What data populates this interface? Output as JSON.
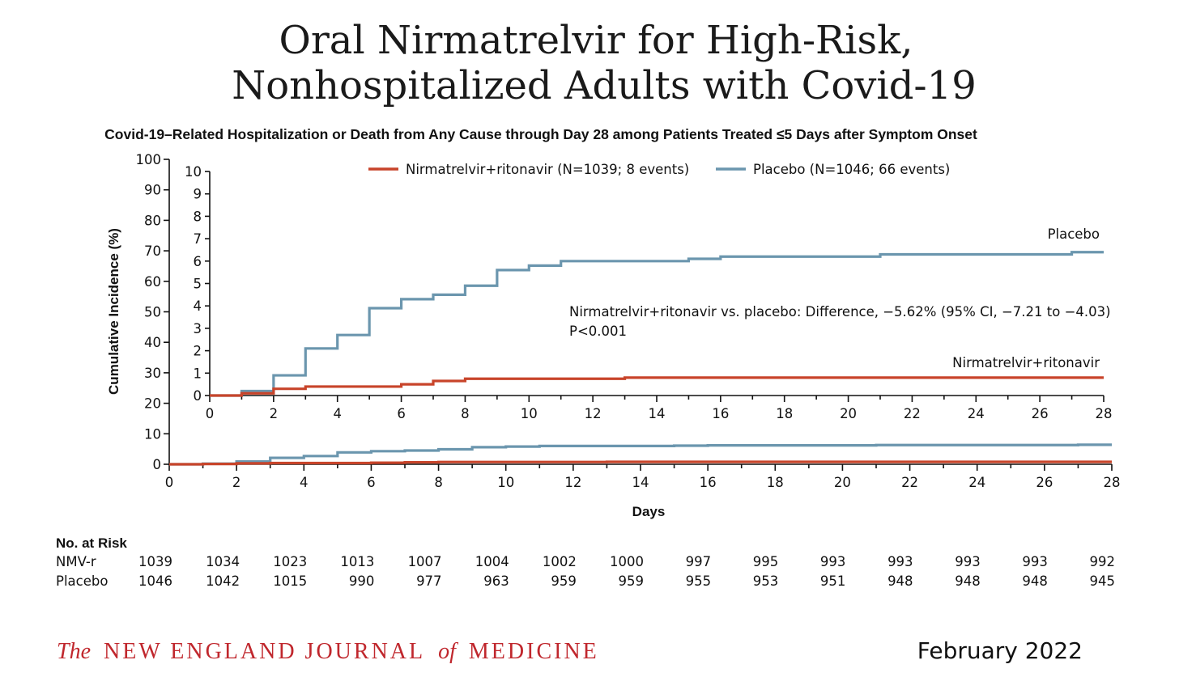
{
  "title_line1": "Oral Nirmatrelvir for High-Risk,",
  "title_line2": "Nonhospitalized Adults with Covid-19",
  "subtitle": "Covid-19–Related Hospitalization or Death from Any Cause through Day 28 among Patients Treated ≤5 Days after Symptom Onset",
  "colors": {
    "nirmatrelvir": "#c8442a",
    "placebo": "#6b96ae"
  },
  "chart_data": {
    "type": "line",
    "title": "Covid-19–Related Hospitalization or Death from Any Cause through Day 28 among Patients Treated ≤5 Days after Symptom Onset",
    "xlabel": "Days",
    "ylabel": "Cumulative Incidence (%)",
    "xlim": [
      0,
      28
    ],
    "ylim": [
      0,
      100
    ],
    "inset_ylim": [
      0,
      10
    ],
    "x_ticks": [
      0,
      2,
      4,
      6,
      8,
      10,
      12,
      14,
      16,
      18,
      20,
      22,
      24,
      26,
      28
    ],
    "y_ticks": [
      0,
      10,
      20,
      30,
      40,
      50,
      60,
      70,
      80,
      90,
      100
    ],
    "inset_y_ticks": [
      0,
      1,
      2,
      3,
      4,
      5,
      6,
      7,
      8,
      9,
      10
    ],
    "legend_position": "top",
    "series": [
      {
        "name": "Nirmatrelvir+ritonavir (N=1039; 8 events)",
        "end_label": "Nirmatrelvir+ritonavir",
        "steps": [
          [
            0,
            0
          ],
          [
            1,
            0.1
          ],
          [
            2,
            0.3
          ],
          [
            3,
            0.4
          ],
          [
            5,
            0.4
          ],
          [
            6,
            0.5
          ],
          [
            7,
            0.65
          ],
          [
            8,
            0.75
          ],
          [
            13,
            0.8
          ],
          [
            28,
            0.8
          ]
        ]
      },
      {
        "name": "Placebo (N=1046; 66 events)",
        "end_label": "Placebo",
        "steps": [
          [
            0,
            0
          ],
          [
            1,
            0.2
          ],
          [
            2,
            0.9
          ],
          [
            3,
            2.1
          ],
          [
            4,
            2.7
          ],
          [
            5,
            3.9
          ],
          [
            6,
            4.3
          ],
          [
            7,
            4.5
          ],
          [
            8,
            4.9
          ],
          [
            9,
            5.6
          ],
          [
            10,
            5.8
          ],
          [
            11,
            6.0
          ],
          [
            15,
            6.1
          ],
          [
            16,
            6.2
          ],
          [
            21,
            6.3
          ],
          [
            27,
            6.4
          ],
          [
            28,
            6.4
          ]
        ]
      }
    ],
    "annotation_line1": "Nirmatrelvir+ritonavir vs. placebo: Difference, −5.62% (95% CI, −7.21 to −4.03)",
    "annotation_line2": "P<0.001"
  },
  "risk_table": {
    "heading": "No. at Risk",
    "rows": [
      {
        "label": "NMV-r",
        "values": [
          1039,
          1034,
          1023,
          1013,
          1007,
          1004,
          1002,
          1000,
          997,
          995,
          993,
          993,
          993,
          993,
          992
        ]
      },
      {
        "label": "Placebo",
        "values": [
          1046,
          1042,
          1015,
          990,
          977,
          963,
          959,
          959,
          955,
          953,
          951,
          948,
          948,
          948,
          945
        ]
      }
    ]
  },
  "footer": {
    "journal_the": "The",
    "journal_name": "NEW ENGLAND JOURNAL",
    "journal_of": "of",
    "journal_medicine": "MEDICINE",
    "date": "February 2022"
  }
}
